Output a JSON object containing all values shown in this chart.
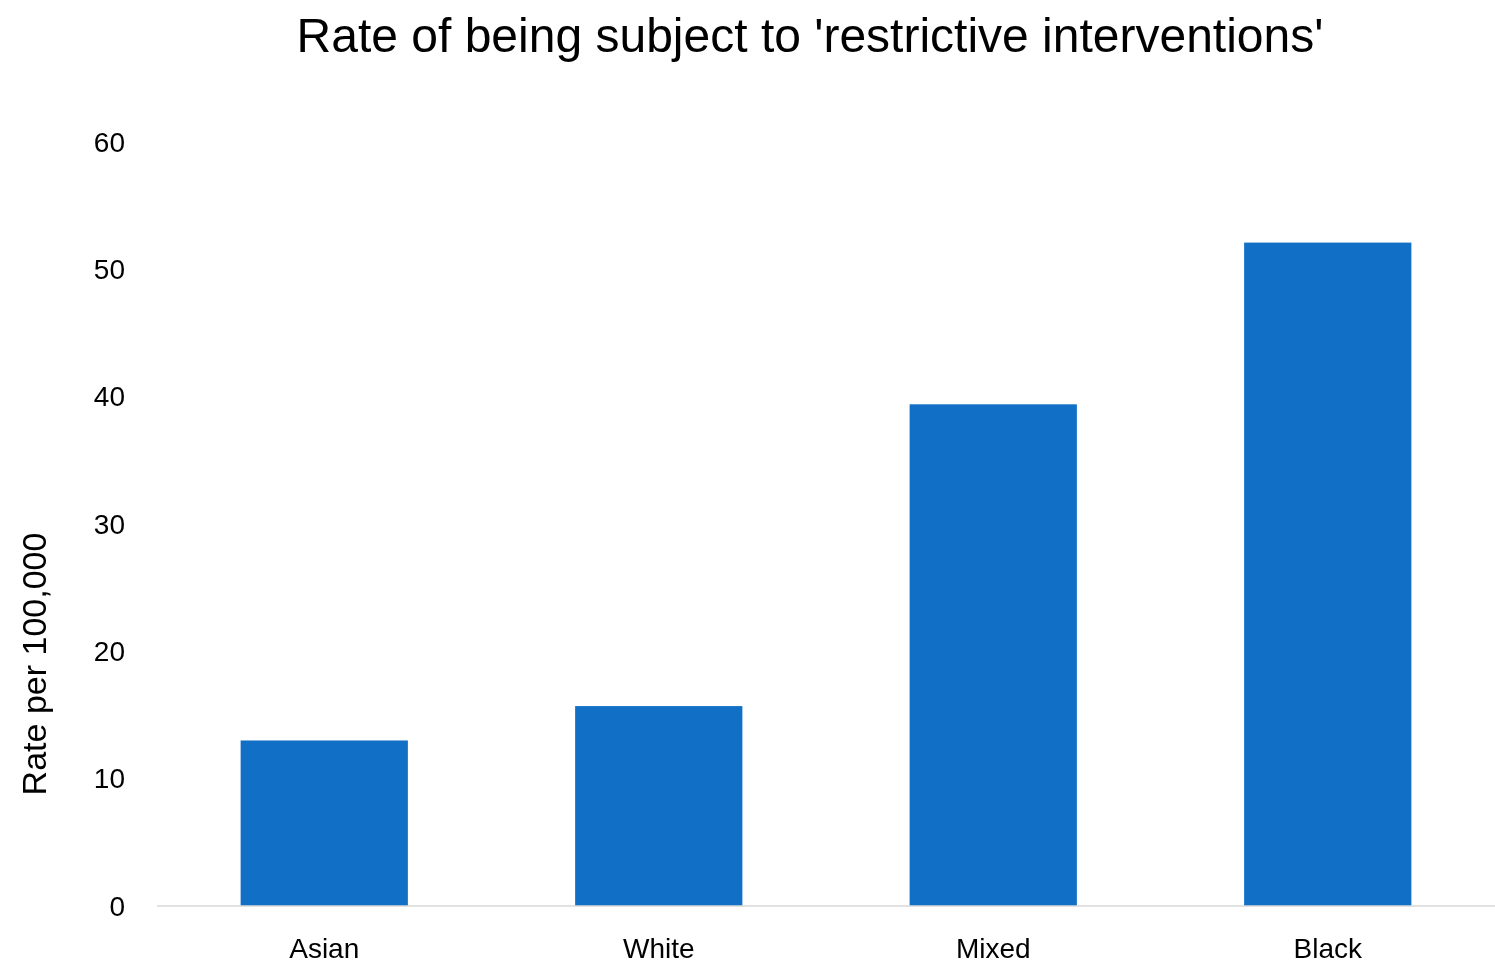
{
  "chart_data": {
    "type": "bar",
    "title": "Rate of being subject to 'restrictive interventions'",
    "ylabel": "Rate per 100,000",
    "categories": [
      "Asian",
      "White",
      "Mixed",
      "Black"
    ],
    "values": [
      13.0,
      15.7,
      39.4,
      52.1
    ],
    "color": "#1170c6",
    "ylim": [
      0,
      60
    ],
    "yticks": [
      0,
      10,
      20,
      30,
      40,
      50,
      60
    ],
    "grid": false
  }
}
